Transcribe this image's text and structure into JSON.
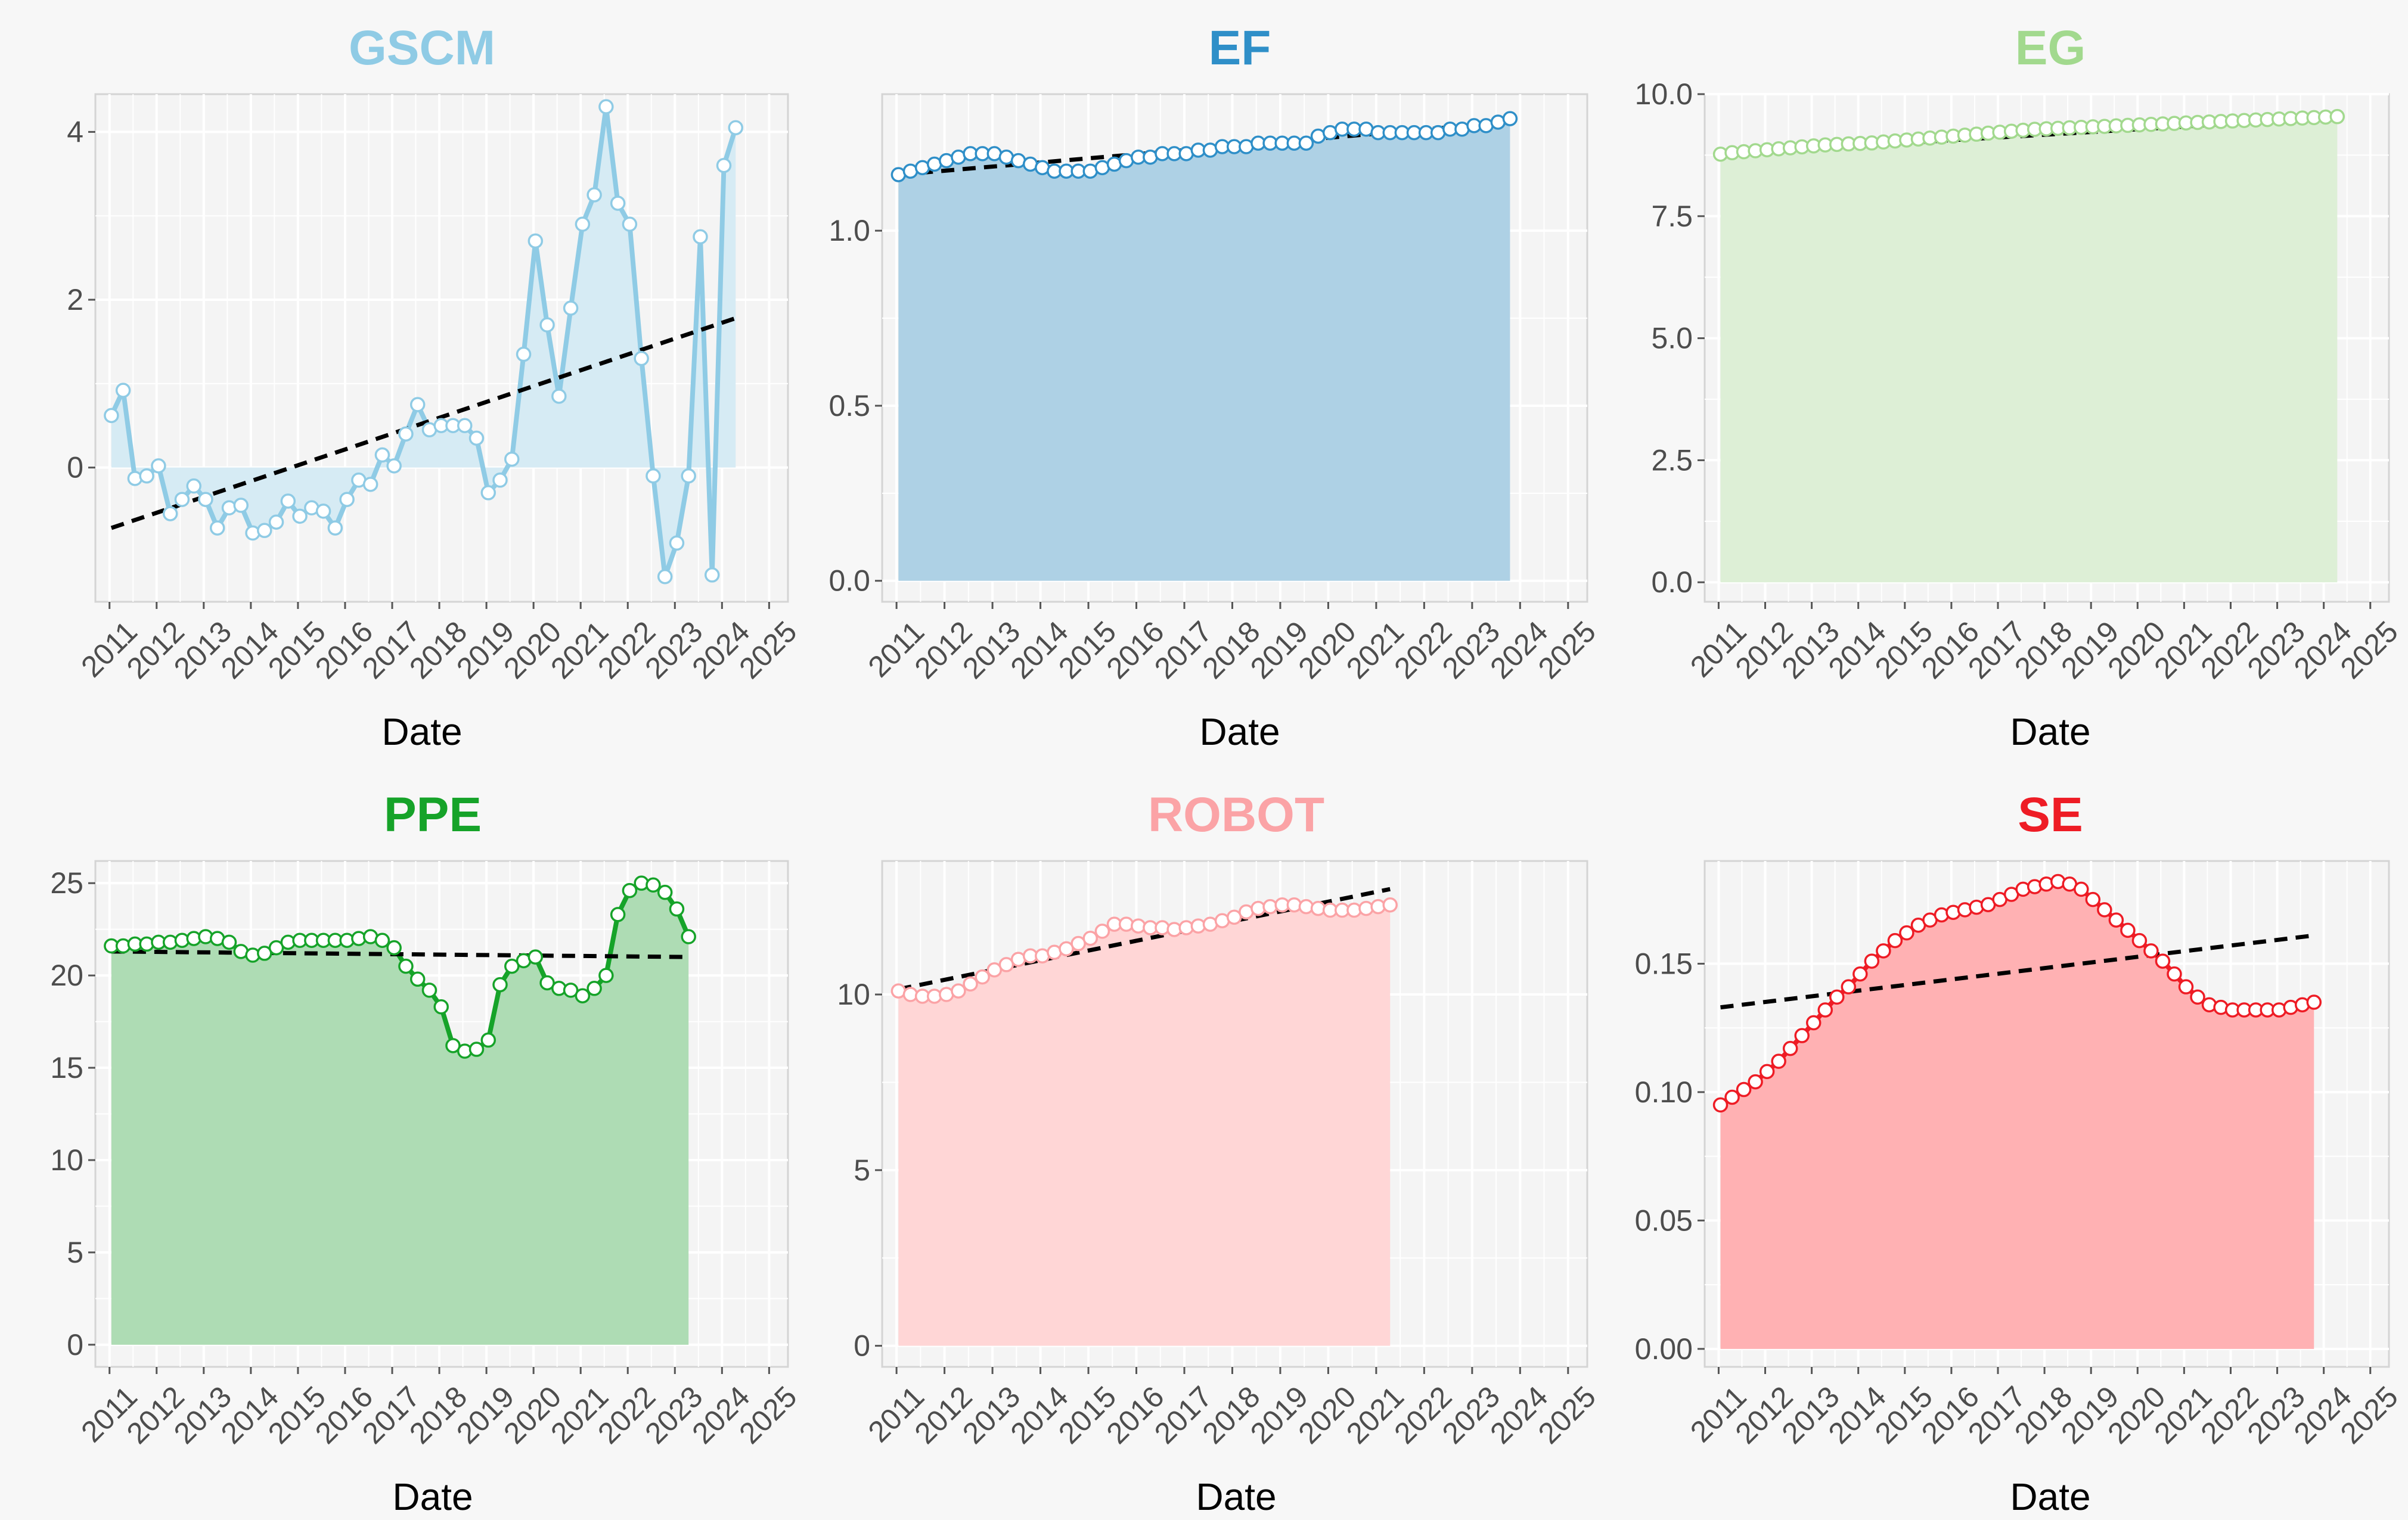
{
  "chart_data": [
    {
      "type": "area",
      "title": "GSCM",
      "color": "#8fcbe5",
      "fill": "#d6ebf4",
      "xlabel": "Date",
      "ylabel": "",
      "x_ticks": [
        "2011",
        "2012",
        "2013",
        "2014",
        "2015",
        "2016",
        "2017",
        "2018",
        "2019",
        "2020",
        "2021",
        "2022",
        "2023",
        "2024",
        "2025"
      ],
      "y_ticks": [
        "0",
        "2",
        "4"
      ],
      "ylim": [
        -1.6,
        4.45
      ],
      "x_range": [
        2010.7,
        2025.4
      ],
      "x": [
        2011.04,
        2011.29,
        2011.54,
        2011.79,
        2012.04,
        2012.29,
        2012.54,
        2012.79,
        2013.04,
        2013.29,
        2013.54,
        2013.79,
        2014.04,
        2014.29,
        2014.54,
        2014.79,
        2015.04,
        2015.29,
        2015.54,
        2015.79,
        2016.04,
        2016.29,
        2016.54,
        2016.79,
        2017.04,
        2017.29,
        2017.54,
        2017.79,
        2018.04,
        2018.29,
        2018.54,
        2018.79,
        2019.04,
        2019.29,
        2019.54,
        2019.79,
        2020.04,
        2020.29,
        2020.54,
        2020.79,
        2021.04,
        2021.29,
        2021.54,
        2021.79,
        2022.04,
        2022.29,
        2022.54,
        2022.79,
        2023.04,
        2023.29,
        2023.54,
        2023.79,
        2024.04,
        2024.29,
        2024.54,
        2024.79
      ],
      "values": [
        0.62,
        0.92,
        -0.13,
        -0.1,
        0.02,
        -0.55,
        -0.38,
        -0.22,
        -0.38,
        -0.72,
        -0.48,
        -0.45,
        -0.78,
        -0.75,
        -0.65,
        -0.4,
        -0.58,
        -0.48,
        -0.52,
        -0.72,
        -0.38,
        -0.15,
        -0.2,
        0.15,
        0.02,
        0.4,
        0.75,
        0.45,
        0.5,
        0.5,
        0.5,
        0.35,
        -0.3,
        -0.15,
        0.1,
        1.35,
        2.7,
        1.7,
        0.85,
        1.9,
        2.9,
        3.25,
        4.3,
        3.15,
        2.9,
        1.3,
        -0.1,
        -1.3,
        -0.9,
        -0.1,
        2.75,
        -1.28,
        3.6,
        4.05,
        null,
        null
      ],
      "trend": [
        -0.72,
        1.78
      ]
    },
    {
      "type": "area",
      "title": "EF",
      "color": "#2f8fc8",
      "fill": "#aed1e5",
      "xlabel": "Date",
      "ylabel": "",
      "x_ticks": [
        "2011",
        "2012",
        "2013",
        "2014",
        "2015",
        "2016",
        "2017",
        "2018",
        "2019",
        "2020",
        "2021",
        "2022",
        "2023",
        "2024",
        "2025"
      ],
      "y_ticks": [
        "0.0",
        "0.5",
        "1.0"
      ],
      "ylim": [
        -0.06,
        1.39
      ],
      "x_range": [
        2010.7,
        2025.4
      ],
      "x": [
        2011.04,
        2011.29,
        2011.54,
        2011.79,
        2012.04,
        2012.29,
        2012.54,
        2012.79,
        2013.04,
        2013.29,
        2013.54,
        2013.79,
        2014.04,
        2014.29,
        2014.54,
        2014.79,
        2015.04,
        2015.29,
        2015.54,
        2015.79,
        2016.04,
        2016.29,
        2016.54,
        2016.79,
        2017.04,
        2017.29,
        2017.54,
        2017.79,
        2018.04,
        2018.29,
        2018.54,
        2018.79,
        2019.04,
        2019.29,
        2019.54,
        2019.79,
        2020.04,
        2020.29,
        2020.54,
        2020.79,
        2021.04,
        2021.29,
        2021.54,
        2021.79,
        2022.04,
        2022.29,
        2022.54,
        2022.79,
        2023.04,
        2023.29,
        2023.54,
        2023.79,
        2024.04,
        2024.29,
        2024.54,
        2024.79
      ],
      "values": [
        1.16,
        1.17,
        1.18,
        1.19,
        1.2,
        1.21,
        1.22,
        1.22,
        1.22,
        1.21,
        1.2,
        1.19,
        1.18,
        1.17,
        1.17,
        1.17,
        1.17,
        1.18,
        1.19,
        1.2,
        1.21,
        1.21,
        1.22,
        1.22,
        1.22,
        1.23,
        1.23,
        1.24,
        1.24,
        1.24,
        1.25,
        1.25,
        1.25,
        1.25,
        1.25,
        1.27,
        1.28,
        1.29,
        1.29,
        1.29,
        1.28,
        1.28,
        1.28,
        1.28,
        1.28,
        1.28,
        1.29,
        1.29,
        1.3,
        1.3,
        1.31,
        1.32,
        null,
        null,
        null,
        null
      ],
      "trend": [
        1.16,
        1.31
      ]
    },
    {
      "type": "area",
      "title": "EG",
      "color": "#a2d98e",
      "fill": "#ddefd6",
      "xlabel": "Date",
      "ylabel": "",
      "x_ticks": [
        "2011",
        "2012",
        "2013",
        "2014",
        "2015",
        "2016",
        "2017",
        "2018",
        "2019",
        "2020",
        "2021",
        "2022",
        "2023",
        "2024",
        "2025"
      ],
      "y_ticks": [
        "0.0",
        "2.5",
        "5.0",
        "7.5",
        "10.0"
      ],
      "ylim": [
        -0.4,
        10.0
      ],
      "x_range": [
        2010.7,
        2025.4
      ],
      "x": [
        2011.04,
        2011.29,
        2011.54,
        2011.79,
        2012.04,
        2012.29,
        2012.54,
        2012.79,
        2013.04,
        2013.29,
        2013.54,
        2013.79,
        2014.04,
        2014.29,
        2014.54,
        2014.79,
        2015.04,
        2015.29,
        2015.54,
        2015.79,
        2016.04,
        2016.29,
        2016.54,
        2016.79,
        2017.04,
        2017.29,
        2017.54,
        2017.79,
        2018.04,
        2018.29,
        2018.54,
        2018.79,
        2019.04,
        2019.29,
        2019.54,
        2019.79,
        2020.04,
        2020.29,
        2020.54,
        2020.79,
        2021.04,
        2021.29,
        2021.54,
        2021.79,
        2022.04,
        2022.29,
        2022.54,
        2022.79,
        2023.04,
        2023.29,
        2023.54,
        2023.79,
        2024.04,
        2024.29,
        2024.54,
        2024.79
      ],
      "values": [
        8.77,
        8.8,
        8.82,
        8.84,
        8.86,
        8.88,
        8.9,
        8.92,
        8.94,
        8.96,
        8.97,
        8.98,
        8.99,
        9.0,
        9.02,
        9.04,
        9.06,
        9.08,
        9.1,
        9.12,
        9.14,
        9.16,
        9.18,
        9.2,
        9.22,
        9.24,
        9.26,
        9.28,
        9.29,
        9.3,
        9.31,
        9.32,
        9.33,
        9.34,
        9.35,
        9.36,
        9.37,
        9.38,
        9.39,
        9.4,
        9.41,
        9.42,
        9.43,
        9.44,
        9.45,
        9.46,
        9.47,
        9.48,
        9.49,
        9.5,
        9.51,
        9.52,
        9.53,
        9.54,
        null,
        null
      ],
      "trend": [
        8.78,
        9.52
      ]
    },
    {
      "type": "area",
      "title": "PPE",
      "color": "#16a329",
      "fill": "#aedcb4",
      "xlabel": "Date",
      "ylabel": "",
      "x_ticks": [
        "2011",
        "2012",
        "2013",
        "2014",
        "2015",
        "2016",
        "2017",
        "2018",
        "2019",
        "2020",
        "2021",
        "2022",
        "2023",
        "2024",
        "2025"
      ],
      "y_ticks": [
        "0",
        "5",
        "10",
        "15",
        "20",
        "25"
      ],
      "ylim": [
        -1.2,
        26.2
      ],
      "x_range": [
        2010.7,
        2025.4
      ],
      "x": [
        2011.04,
        2011.29,
        2011.54,
        2011.79,
        2012.04,
        2012.29,
        2012.54,
        2012.79,
        2013.04,
        2013.29,
        2013.54,
        2013.79,
        2014.04,
        2014.29,
        2014.54,
        2014.79,
        2015.04,
        2015.29,
        2015.54,
        2015.79,
        2016.04,
        2016.29,
        2016.54,
        2016.79,
        2017.04,
        2017.29,
        2017.54,
        2017.79,
        2018.04,
        2018.29,
        2018.54,
        2018.79,
        2019.04,
        2019.29,
        2019.54,
        2019.79,
        2020.04,
        2020.29,
        2020.54,
        2020.79,
        2021.04,
        2021.29,
        2021.54,
        2021.79,
        2022.04,
        2022.29,
        2022.54,
        2022.79,
        2023.04,
        2023.29,
        2023.54,
        2023.79,
        2024.04,
        2024.29,
        2024.54,
        2024.79
      ],
      "values": [
        21.6,
        21.6,
        21.7,
        21.7,
        21.8,
        21.8,
        21.9,
        22.0,
        22.1,
        22.0,
        21.8,
        21.3,
        21.1,
        21.2,
        21.5,
        21.8,
        21.9,
        21.9,
        21.9,
        21.9,
        21.9,
        22.0,
        22.1,
        21.9,
        21.5,
        20.5,
        19.8,
        19.2,
        18.3,
        16.2,
        15.9,
        16.0,
        16.5,
        19.5,
        20.5,
        20.8,
        21.0,
        19.6,
        19.3,
        19.2,
        18.9,
        19.3,
        20.0,
        23.3,
        24.6,
        25.0,
        24.9,
        24.5,
        23.6,
        22.1,
        null,
        null,
        null,
        null,
        null,
        null
      ],
      "trend": [
        21.3,
        21.0
      ]
    },
    {
      "type": "area",
      "title": "ROBOT",
      "color": "#fba3a6",
      "fill": "#ffd6d6",
      "xlabel": "Date",
      "ylabel": "",
      "x_ticks": [
        "2011",
        "2012",
        "2013",
        "2014",
        "2015",
        "2016",
        "2017",
        "2018",
        "2019",
        "2020",
        "2021",
        "2022",
        "2023",
        "2024",
        "2025"
      ],
      "y_ticks": [
        "0",
        "5",
        "10"
      ],
      "ylim": [
        -0.6,
        13.8
      ],
      "x_range": [
        2010.7,
        2025.4
      ],
      "x": [
        2011.04,
        2011.29,
        2011.54,
        2011.79,
        2012.04,
        2012.29,
        2012.54,
        2012.79,
        2013.04,
        2013.29,
        2013.54,
        2013.79,
        2014.04,
        2014.29,
        2014.54,
        2014.79,
        2015.04,
        2015.29,
        2015.54,
        2015.79,
        2016.04,
        2016.29,
        2016.54,
        2016.79,
        2017.04,
        2017.29,
        2017.54,
        2017.79,
        2018.04,
        2018.29,
        2018.54,
        2018.79,
        2019.04,
        2019.29,
        2019.54,
        2019.79,
        2020.04,
        2020.29,
        2020.54,
        2020.79,
        2021.04,
        2021.29,
        2021.54,
        2021.79,
        2022.04,
        2022.29,
        2022.54,
        2022.79,
        2023.04,
        2023.29,
        2023.54,
        2023.79,
        2024.04,
        2024.29,
        2024.54,
        2024.79
      ],
      "values": [
        10.1,
        10.0,
        9.95,
        9.95,
        10.0,
        10.1,
        10.3,
        10.5,
        10.7,
        10.85,
        11.0,
        11.1,
        11.1,
        11.2,
        11.3,
        11.45,
        11.6,
        11.8,
        12.0,
        12.0,
        11.95,
        11.9,
        11.9,
        11.85,
        11.9,
        11.95,
        12.0,
        12.1,
        12.2,
        12.35,
        12.45,
        12.5,
        12.55,
        12.55,
        12.5,
        12.45,
        12.4,
        12.4,
        12.4,
        12.45,
        12.5,
        12.55,
        null,
        null,
        null,
        null,
        null,
        null,
        null,
        null,
        null,
        null,
        null,
        null,
        null,
        null
      ],
      "trend": [
        10.15,
        13.0
      ]
    },
    {
      "type": "area",
      "title": "SE",
      "color": "#ee1c25",
      "fill": "#ffb1b3",
      "xlabel": "Date",
      "ylabel": "",
      "x_ticks": [
        "2011",
        "2012",
        "2013",
        "2014",
        "2015",
        "2016",
        "2017",
        "2018",
        "2019",
        "2020",
        "2021",
        "2022",
        "2023",
        "2024",
        "2025"
      ],
      "y_ticks": [
        "0.00",
        "0.05",
        "0.10",
        "0.15"
      ],
      "ylim": [
        -0.007,
        0.19
      ],
      "x_range": [
        2010.7,
        2025.4
      ],
      "x": [
        2011.04,
        2011.29,
        2011.54,
        2011.79,
        2012.04,
        2012.29,
        2012.54,
        2012.79,
        2013.04,
        2013.29,
        2013.54,
        2013.79,
        2014.04,
        2014.29,
        2014.54,
        2014.79,
        2015.04,
        2015.29,
        2015.54,
        2015.79,
        2016.04,
        2016.29,
        2016.54,
        2016.79,
        2017.04,
        2017.29,
        2017.54,
        2017.79,
        2018.04,
        2018.29,
        2018.54,
        2018.79,
        2019.04,
        2019.29,
        2019.54,
        2019.79,
        2020.04,
        2020.29,
        2020.54,
        2020.79,
        2021.04,
        2021.29,
        2021.54,
        2021.79,
        2022.04,
        2022.29,
        2022.54,
        2022.79,
        2023.04,
        2023.29,
        2023.54,
        2023.79,
        2024.04,
        2024.29,
        2024.54,
        2024.79
      ],
      "values": [
        0.095,
        0.098,
        0.101,
        0.104,
        0.108,
        0.112,
        0.117,
        0.122,
        0.127,
        0.132,
        0.137,
        0.141,
        0.146,
        0.151,
        0.155,
        0.159,
        0.162,
        0.165,
        0.167,
        0.169,
        0.17,
        0.171,
        0.172,
        0.173,
        0.175,
        0.177,
        0.179,
        0.18,
        0.181,
        0.182,
        0.181,
        0.179,
        0.175,
        0.171,
        0.167,
        0.163,
        0.159,
        0.155,
        0.151,
        0.146,
        0.141,
        0.137,
        0.134,
        0.133,
        0.132,
        0.132,
        0.132,
        0.132,
        0.132,
        0.133,
        0.134,
        0.135,
        null,
        null,
        null,
        null
      ],
      "trend": [
        0.133,
        0.161
      ]
    }
  ]
}
